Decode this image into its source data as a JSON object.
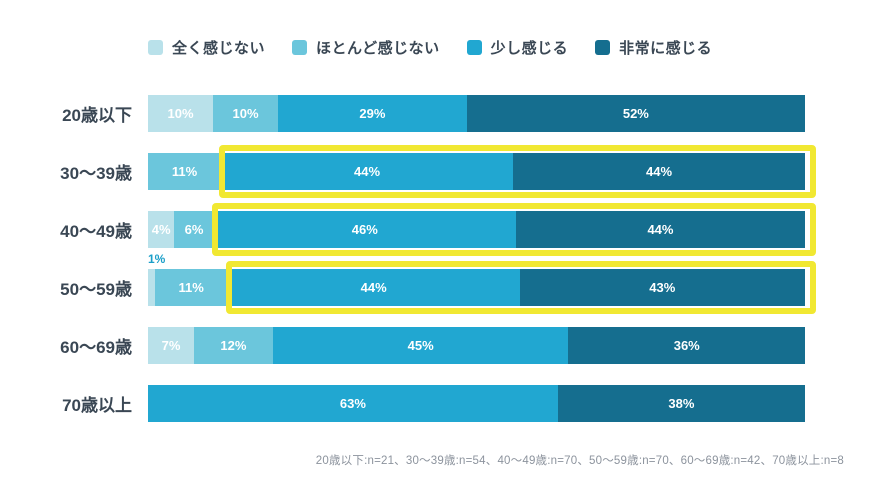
{
  "chart_data": {
    "type": "bar",
    "orientation": "horizontal",
    "stacked": true,
    "value_suffix": "%",
    "legend_position": "top",
    "grid": false,
    "categories": [
      "20歳以下",
      "30〜39歳",
      "40〜49歳",
      "50〜59歳",
      "60〜69歳",
      "70歳以上"
    ],
    "series": [
      {
        "name": "全く感じない",
        "color": "#b9e1ea",
        "values": [
          10,
          null,
          4,
          1,
          7,
          null
        ]
      },
      {
        "name": "ほとんど感じない",
        "color": "#6bc6dc",
        "values": [
          10,
          11,
          6,
          11,
          12,
          null
        ]
      },
      {
        "name": "少し感じる",
        "color": "#21a7d1",
        "values": [
          29,
          44,
          46,
          44,
          45,
          63
        ]
      },
      {
        "name": "非常に感じる",
        "color": "#156e8f",
        "values": [
          52,
          44,
          44,
          43,
          36,
          38
        ]
      }
    ],
    "highlighted_categories": [
      "30〜39歳",
      "40〜49歳",
      "50〜59歳"
    ],
    "highlight_spans_series": [
      "少し感じる",
      "非常に感じる"
    ],
    "highlight_color": "#f1e832",
    "colors": {
      "category_label_text": "#3a4754",
      "segment_label_text": "#ffffff",
      "small_value_callout_text": "#1b9fc9",
      "footnote_text": "#8c939d",
      "background": "#ffffff"
    },
    "footnote": "20歳以下:n=21、30〜39歳:n=54、40〜49歳:n=70、50〜59歳:n=70、60〜69歳:n=42、70歳以上:n=8"
  }
}
